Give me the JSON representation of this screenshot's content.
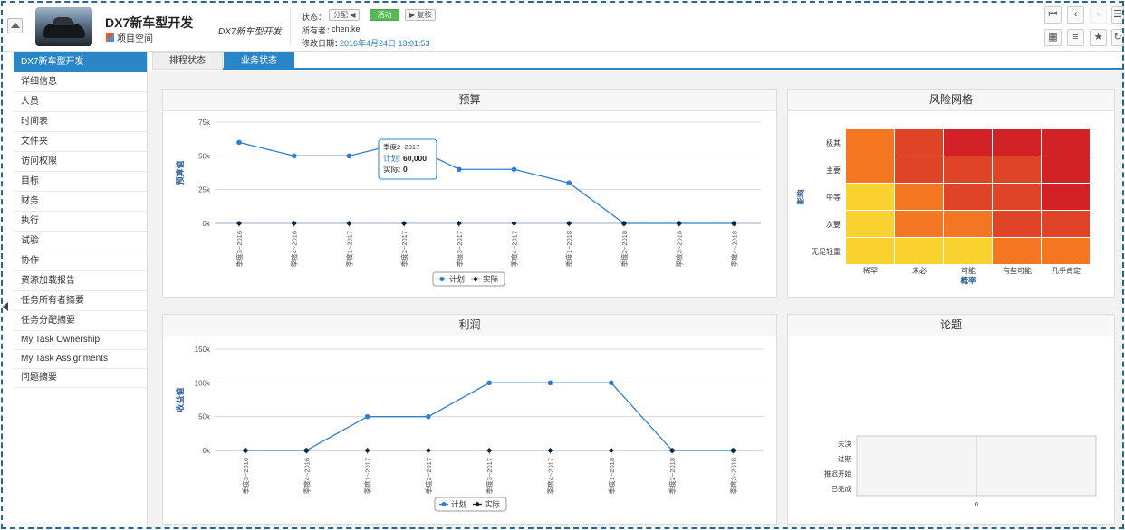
{
  "header": {
    "title": "DX7新车型开发",
    "subtitle": "项目空间",
    "italic_label": "DX7新车型开发",
    "status_label": "状态：",
    "btn_assign": "分配",
    "btn_active": "活动",
    "btn_review": "复核",
    "owner_label": "所有者：",
    "owner_value": "chen.ke",
    "modified_label": "修改日期：",
    "modified_value": "2016年4月24日 13:01:53"
  },
  "sidebar": {
    "items": [
      {
        "label": "DX7新车型开发"
      },
      {
        "label": "详细信息"
      },
      {
        "label": "人员"
      },
      {
        "label": "时间表"
      },
      {
        "label": "文件夹"
      },
      {
        "label": "访问权限"
      },
      {
        "label": "目标"
      },
      {
        "label": "财务"
      },
      {
        "label": "执行"
      },
      {
        "label": "试验"
      },
      {
        "label": "协作"
      },
      {
        "label": "资源加载报告"
      },
      {
        "label": "任务所有者摘要"
      },
      {
        "label": "任务分配摘要"
      },
      {
        "label": "My Task Ownership"
      },
      {
        "label": "My Task Assignments"
      },
      {
        "label": "问题摘要"
      }
    ]
  },
  "tabs": [
    {
      "label": "排程状态"
    },
    {
      "label": "业务状态"
    }
  ],
  "panels": {
    "budget": "预算",
    "risk": "风险网格",
    "profit": "利润",
    "issues": "论题"
  },
  "colors": {
    "accent": "#2b86c8",
    "plan_series": "#2d7fd3",
    "actual_series": "#0d233a",
    "risk_low": "#f9d230",
    "risk_mid": "#f47620",
    "risk_high": "#e04426",
    "risk_max": "#d22228"
  },
  "chart_data": [
    {
      "type": "line",
      "title": "预算",
      "ylabel": "预算值",
      "xlabel": "",
      "ylim": [
        0,
        75000
      ],
      "yticks": [
        {
          "v": 0,
          "label": "0k"
        },
        {
          "v": 25000,
          "label": "25k"
        },
        {
          "v": 50000,
          "label": "50k"
        },
        {
          "v": 75000,
          "label": "75k"
        }
      ],
      "categories": [
        "季度3~2016",
        "季度4~2016",
        "季度1~2017",
        "季度2~2017",
        "季度3~2017",
        "季度4~2017",
        "季度1~2018",
        "季度2~2018",
        "季度3~2018",
        "季度4~2018"
      ],
      "series": [
        {
          "name": "计划",
          "values": [
            60000,
            50000,
            50000,
            60000,
            40000,
            40000,
            30000,
            0,
            0,
            0
          ]
        },
        {
          "name": "实际",
          "values": [
            0,
            0,
            0,
            0,
            0,
            0,
            0,
            0,
            0,
            0
          ]
        }
      ],
      "legend": "bottom-center",
      "grid": true,
      "tooltip": {
        "category": "季度2~2017",
        "plan_label": "计划:",
        "plan_value": "60,000",
        "actual_label": "实际:",
        "actual_value": "0"
      }
    },
    {
      "type": "heatmap",
      "title": "风险网格",
      "xlabel": "概率",
      "ylabel": "影响",
      "x_categories": [
        "稀罕",
        "未必",
        "可能",
        "有些可能",
        "几乎肯定"
      ],
      "y_categories": [
        "极其",
        "主要",
        "中等",
        "次要",
        "无足轻重"
      ],
      "levels": [
        [
          2,
          3,
          4,
          4,
          4
        ],
        [
          2,
          3,
          3,
          3,
          4
        ],
        [
          1,
          2,
          3,
          3,
          4
        ],
        [
          1,
          2,
          2,
          3,
          3
        ],
        [
          1,
          1,
          1,
          2,
          2
        ]
      ]
    },
    {
      "type": "line",
      "title": "利润",
      "ylabel": "收益值",
      "xlabel": "",
      "ylim": [
        0,
        150000
      ],
      "yticks": [
        {
          "v": 0,
          "label": "0k"
        },
        {
          "v": 50000,
          "label": "50k"
        },
        {
          "v": 100000,
          "label": "100k"
        },
        {
          "v": 150000,
          "label": "150k"
        }
      ],
      "categories": [
        "季度3~2016",
        "季度4~2016",
        "季度1~2017",
        "季度2~2017",
        "季度3~2017",
        "季度4~2017",
        "季度1~2018",
        "季度2~2018",
        "季度3~2018"
      ],
      "series": [
        {
          "name": "计划",
          "values": [
            0,
            0,
            50000,
            50000,
            100000,
            100000,
            100000,
            0,
            0
          ]
        },
        {
          "name": "实际",
          "values": [
            0,
            0,
            0,
            0,
            0,
            0,
            0,
            0,
            0
          ]
        }
      ],
      "legend": "bottom-center",
      "grid": true
    },
    {
      "type": "bar",
      "title": "论题",
      "categories": [
        "未决",
        "过期",
        "推迟开始",
        "已完成"
      ],
      "values": [
        0,
        0,
        0,
        0
      ],
      "xticks": [
        "0"
      ]
    }
  ]
}
